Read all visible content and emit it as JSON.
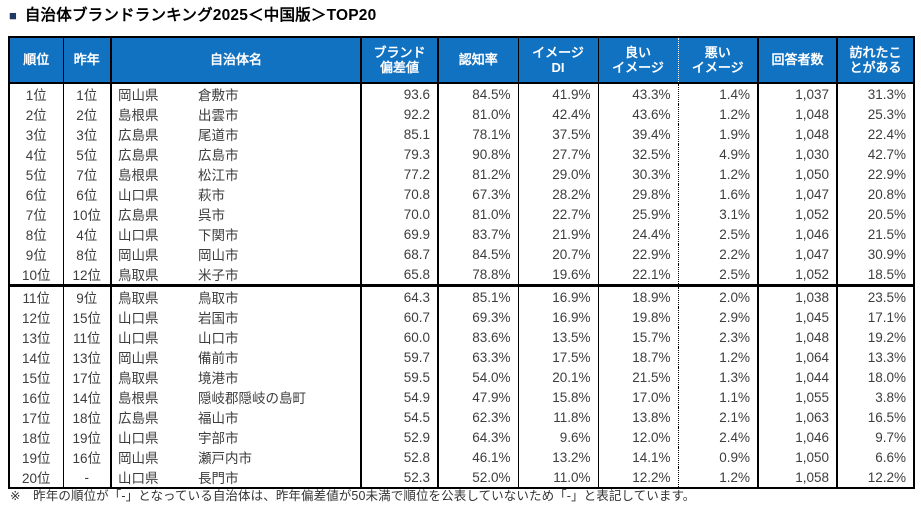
{
  "page": {
    "title_bullet": "■",
    "title": "自治体ブランドランキング2025＜中国版＞TOP20",
    "footnote": "※　昨年の順位が「-」となっている自治体は、昨年偏差値が50未満で順位を公表していないため「-」と表記しています。"
  },
  "colors": {
    "header_bg": "#1272c2",
    "header_text": "#ffffff",
    "border": "#000000",
    "body_text": "#3d3d3d",
    "title_bullet": "#1f3864"
  },
  "table": {
    "columns": [
      {
        "key": "rank",
        "lines": [
          "順位"
        ]
      },
      {
        "key": "last_year",
        "lines": [
          "昨年"
        ]
      },
      {
        "key": "municipality",
        "lines": [
          "自治体名"
        ]
      },
      {
        "key": "brand_score",
        "lines": [
          "ブランド",
          "偏差値"
        ]
      },
      {
        "key": "awareness",
        "lines": [
          "認知率"
        ]
      },
      {
        "key": "image_di",
        "lines": [
          "イメージ",
          "DI"
        ]
      },
      {
        "key": "good_image",
        "lines": [
          "良い",
          "イメージ"
        ]
      },
      {
        "key": "bad_image",
        "lines": [
          "悪い",
          "イメージ"
        ]
      },
      {
        "key": "respondents",
        "lines": [
          "回答者数"
        ]
      },
      {
        "key": "visited",
        "lines": [
          "訪れたこ",
          "とがある"
        ]
      }
    ],
    "rows": [
      {
        "rank": "1位",
        "last_year": "1位",
        "prefecture": "岡山県",
        "city": "倉敷市",
        "brand_score": "93.6",
        "awareness": "84.5%",
        "image_di": "41.9%",
        "good_image": "43.3%",
        "bad_image": "1.4%",
        "respondents": "1,037",
        "visited": "31.3%"
      },
      {
        "rank": "2位",
        "last_year": "2位",
        "prefecture": "島根県",
        "city": "出雲市",
        "brand_score": "92.2",
        "awareness": "81.0%",
        "image_di": "42.4%",
        "good_image": "43.6%",
        "bad_image": "1.2%",
        "respondents": "1,048",
        "visited": "25.3%"
      },
      {
        "rank": "3位",
        "last_year": "3位",
        "prefecture": "広島県",
        "city": "尾道市",
        "brand_score": "85.1",
        "awareness": "78.1%",
        "image_di": "37.5%",
        "good_image": "39.4%",
        "bad_image": "1.9%",
        "respondents": "1,048",
        "visited": "22.4%"
      },
      {
        "rank": "4位",
        "last_year": "5位",
        "prefecture": "広島県",
        "city": "広島市",
        "brand_score": "79.3",
        "awareness": "90.8%",
        "image_di": "27.7%",
        "good_image": "32.5%",
        "bad_image": "4.9%",
        "respondents": "1,030",
        "visited": "42.7%"
      },
      {
        "rank": "5位",
        "last_year": "7位",
        "prefecture": "島根県",
        "city": "松江市",
        "brand_score": "77.2",
        "awareness": "81.2%",
        "image_di": "29.0%",
        "good_image": "30.3%",
        "bad_image": "1.2%",
        "respondents": "1,050",
        "visited": "22.9%"
      },
      {
        "rank": "6位",
        "last_year": "6位",
        "prefecture": "山口県",
        "city": "萩市",
        "brand_score": "70.8",
        "awareness": "67.3%",
        "image_di": "28.2%",
        "good_image": "29.8%",
        "bad_image": "1.6%",
        "respondents": "1,047",
        "visited": "20.8%"
      },
      {
        "rank": "7位",
        "last_year": "10位",
        "prefecture": "広島県",
        "city": "呉市",
        "brand_score": "70.0",
        "awareness": "81.0%",
        "image_di": "22.7%",
        "good_image": "25.9%",
        "bad_image": "3.1%",
        "respondents": "1,052",
        "visited": "20.5%"
      },
      {
        "rank": "8位",
        "last_year": "4位",
        "prefecture": "山口県",
        "city": "下関市",
        "brand_score": "69.9",
        "awareness": "83.7%",
        "image_di": "21.9%",
        "good_image": "24.4%",
        "bad_image": "2.5%",
        "respondents": "1,046",
        "visited": "21.5%"
      },
      {
        "rank": "9位",
        "last_year": "8位",
        "prefecture": "岡山県",
        "city": "岡山市",
        "brand_score": "68.7",
        "awareness": "84.5%",
        "image_di": "20.7%",
        "good_image": "22.9%",
        "bad_image": "2.2%",
        "respondents": "1,047",
        "visited": "30.9%"
      },
      {
        "rank": "10位",
        "last_year": "12位",
        "prefecture": "鳥取県",
        "city": "米子市",
        "brand_score": "65.8",
        "awareness": "78.8%",
        "image_di": "19.6%",
        "good_image": "22.1%",
        "bad_image": "2.5%",
        "respondents": "1,052",
        "visited": "18.5%"
      },
      {
        "rank": "11位",
        "last_year": "9位",
        "prefecture": "鳥取県",
        "city": "鳥取市",
        "brand_score": "64.3",
        "awareness": "85.1%",
        "image_di": "16.9%",
        "good_image": "18.9%",
        "bad_image": "2.0%",
        "respondents": "1,038",
        "visited": "23.5%"
      },
      {
        "rank": "12位",
        "last_year": "15位",
        "prefecture": "山口県",
        "city": "岩国市",
        "brand_score": "60.7",
        "awareness": "69.3%",
        "image_di": "16.9%",
        "good_image": "19.8%",
        "bad_image": "2.9%",
        "respondents": "1,045",
        "visited": "17.1%"
      },
      {
        "rank": "13位",
        "last_year": "11位",
        "prefecture": "山口県",
        "city": "山口市",
        "brand_score": "60.0",
        "awareness": "83.6%",
        "image_di": "13.5%",
        "good_image": "15.7%",
        "bad_image": "2.3%",
        "respondents": "1,048",
        "visited": "19.2%"
      },
      {
        "rank": "14位",
        "last_year": "13位",
        "prefecture": "岡山県",
        "city": "備前市",
        "brand_score": "59.7",
        "awareness": "63.3%",
        "image_di": "17.5%",
        "good_image": "18.7%",
        "bad_image": "1.2%",
        "respondents": "1,064",
        "visited": "13.3%"
      },
      {
        "rank": "15位",
        "last_year": "17位",
        "prefecture": "鳥取県",
        "city": "境港市",
        "brand_score": "59.5",
        "awareness": "54.0%",
        "image_di": "20.1%",
        "good_image": "21.5%",
        "bad_image": "1.3%",
        "respondents": "1,044",
        "visited": "18.0%"
      },
      {
        "rank": "16位",
        "last_year": "14位",
        "prefecture": "島根県",
        "city": "隠岐郡隠岐の島町",
        "brand_score": "54.9",
        "awareness": "47.9%",
        "image_di": "15.8%",
        "good_image": "17.0%",
        "bad_image": "1.1%",
        "respondents": "1,055",
        "visited": "3.8%"
      },
      {
        "rank": "17位",
        "last_year": "18位",
        "prefecture": "広島県",
        "city": "福山市",
        "brand_score": "54.5",
        "awareness": "62.3%",
        "image_di": "11.8%",
        "good_image": "13.8%",
        "bad_image": "2.1%",
        "respondents": "1,063",
        "visited": "16.5%"
      },
      {
        "rank": "18位",
        "last_year": "19位",
        "prefecture": "山口県",
        "city": "宇部市",
        "brand_score": "52.9",
        "awareness": "64.3%",
        "image_di": "9.6%",
        "good_image": "12.0%",
        "bad_image": "2.4%",
        "respondents": "1,046",
        "visited": "9.7%"
      },
      {
        "rank": "19位",
        "last_year": "16位",
        "prefecture": "岡山県",
        "city": "瀬戸内市",
        "brand_score": "52.8",
        "awareness": "46.1%",
        "image_di": "13.2%",
        "good_image": "14.1%",
        "bad_image": "0.9%",
        "respondents": "1,050",
        "visited": "6.6%"
      },
      {
        "rank": "20位",
        "last_year": "-",
        "prefecture": "山口県",
        "city": "長門市",
        "brand_score": "52.3",
        "awareness": "52.0%",
        "image_di": "11.0%",
        "good_image": "12.2%",
        "bad_image": "1.2%",
        "respondents": "1,058",
        "visited": "12.2%"
      }
    ]
  }
}
